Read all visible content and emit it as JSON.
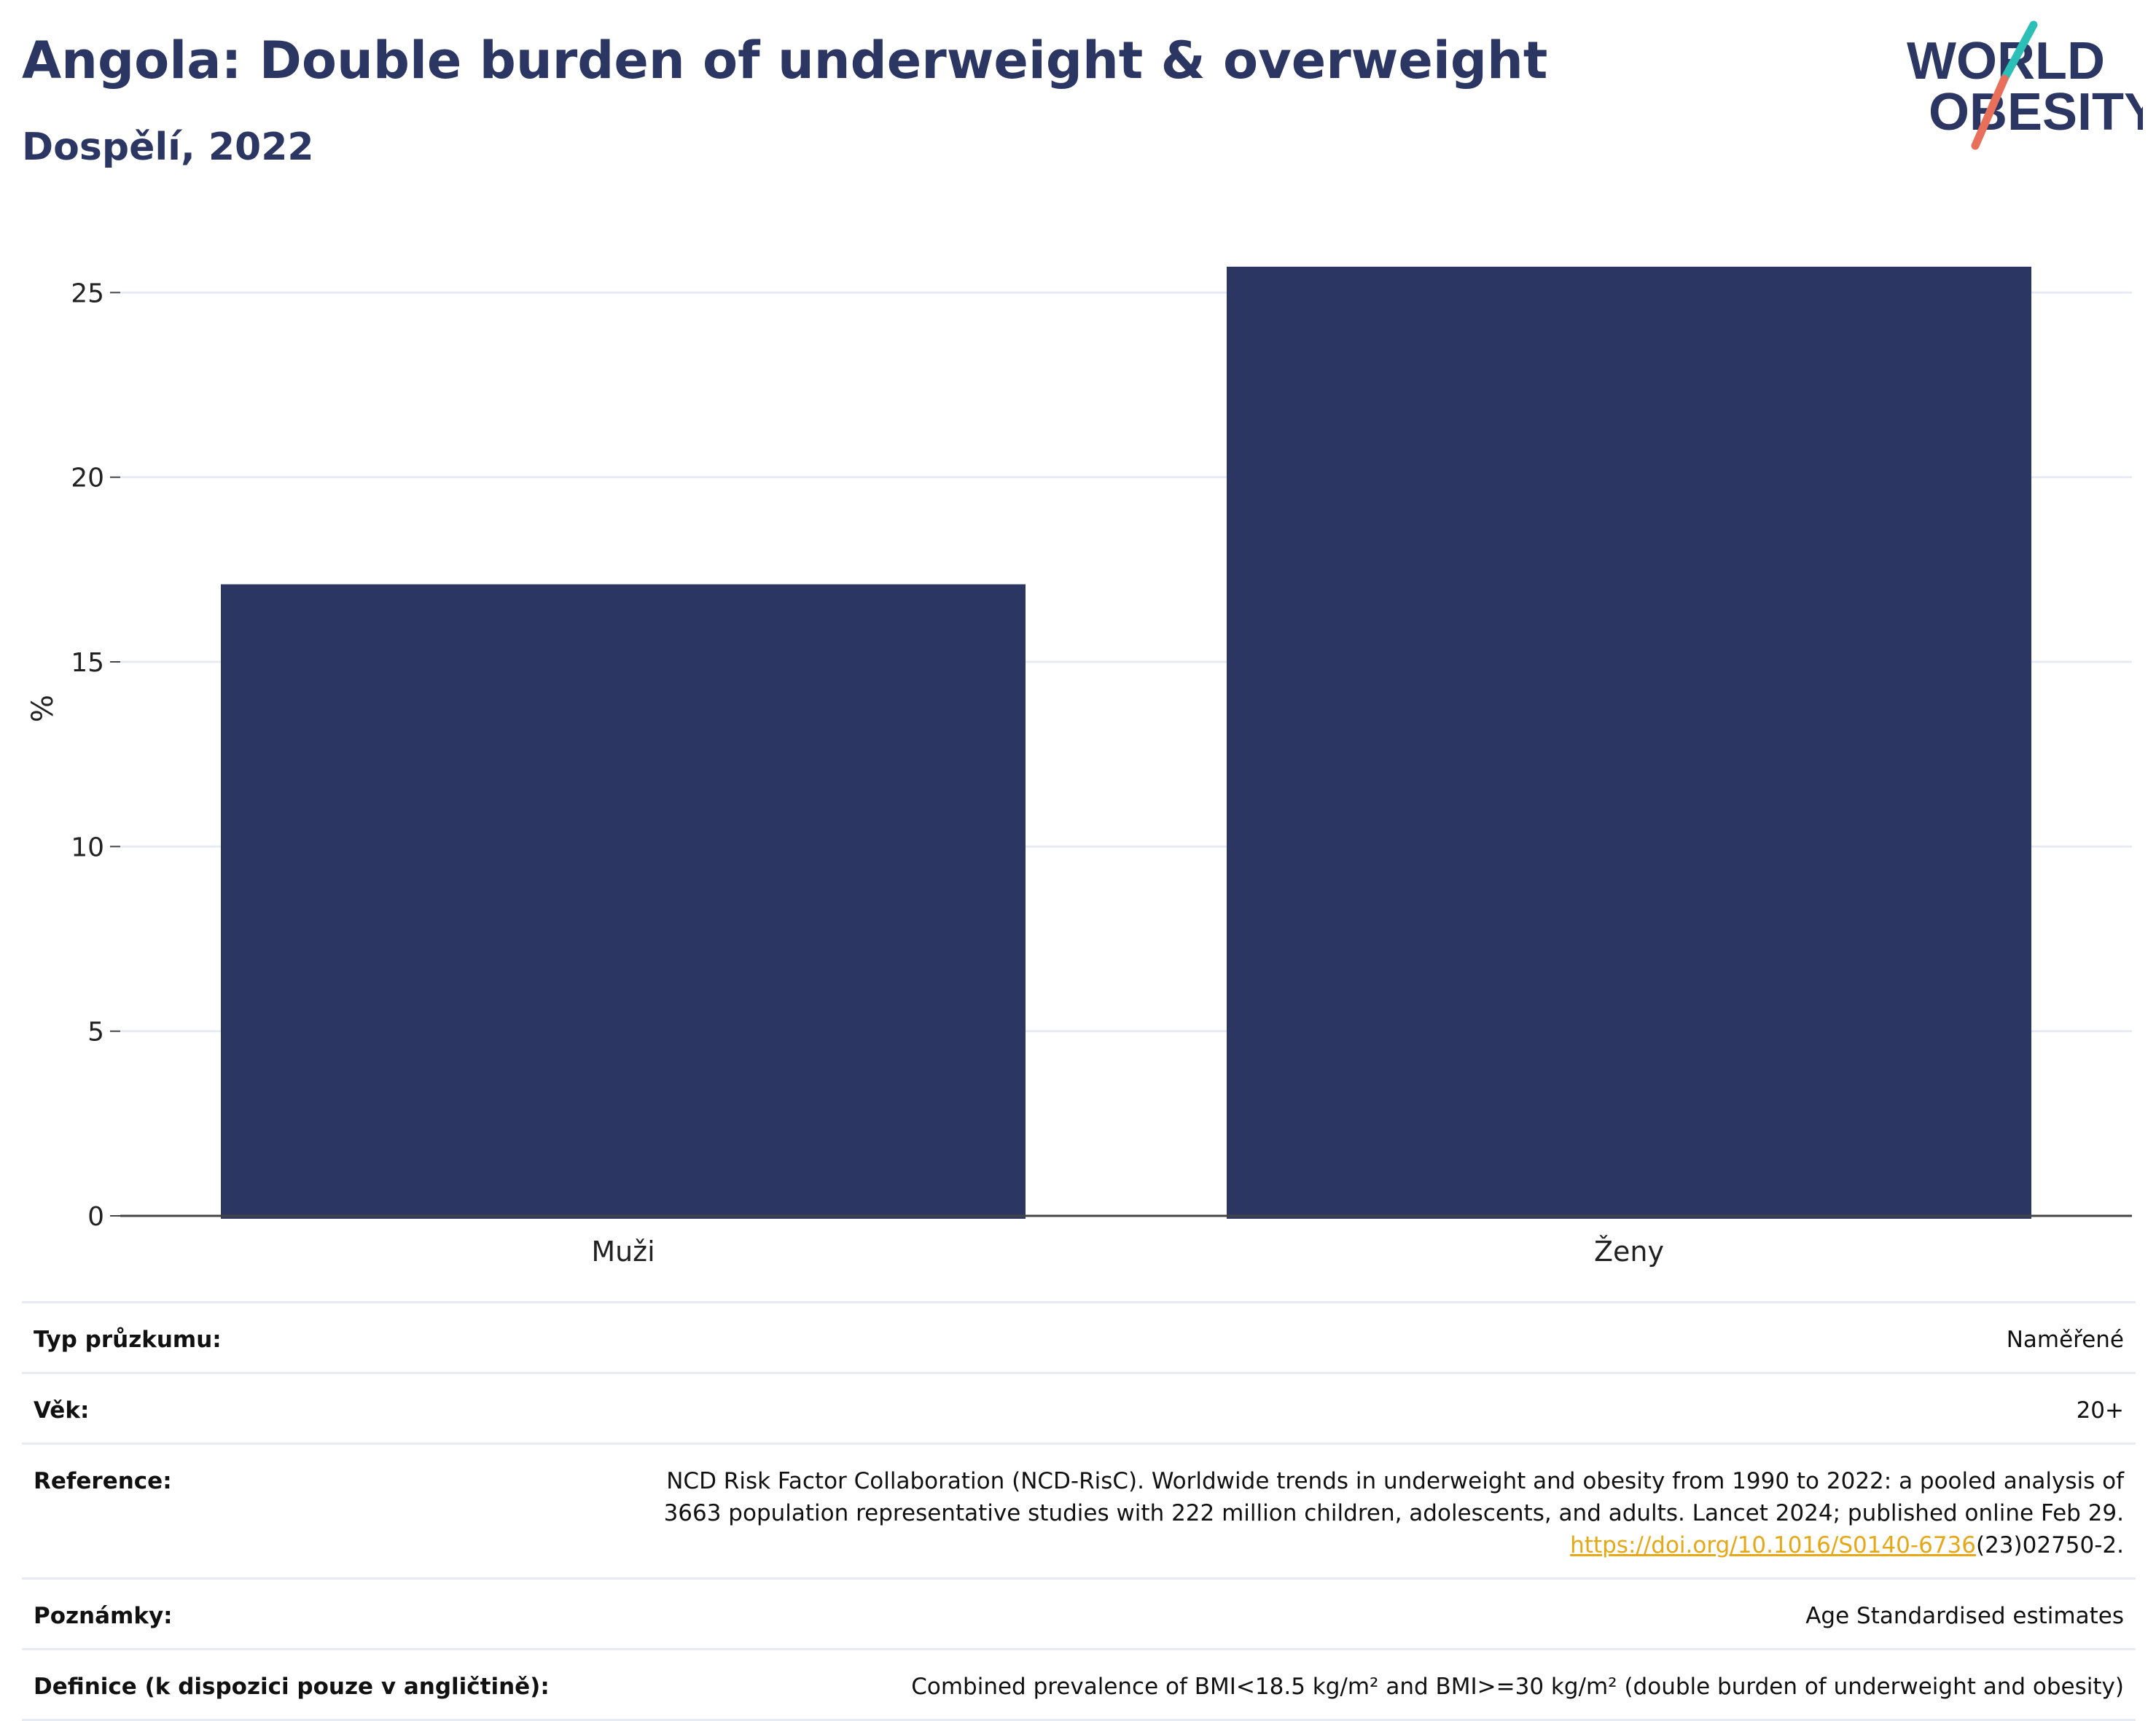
{
  "header": {
    "title": "Angola: Double burden of underweight & overweight",
    "subtitle": "Dospělí, 2022"
  },
  "logo": {
    "line1": "WORLD",
    "line2": "OBESITY",
    "text_color": "#2b3663",
    "slash_color_top": "#2bbfb8",
    "slash_color_bottom": "#e8705a"
  },
  "chart_data": {
    "type": "bar",
    "categories": [
      "Muži",
      "Ženy"
    ],
    "values": [
      17.1,
      25.7
    ],
    "ylabel": "%",
    "xlabel": "",
    "ylim": [
      0,
      27
    ],
    "yticks": [
      0,
      5,
      10,
      15,
      20,
      25
    ],
    "grid": true,
    "bar_color": "#2b3663"
  },
  "info": {
    "rows": [
      {
        "label": "Typ průzkumu:",
        "value": "Naměřené"
      },
      {
        "label": "Věk:",
        "value": "20+"
      },
      {
        "label": "Reference:",
        "value_line1": "NCD Risk Factor Collaboration (NCD-RisC). Worldwide trends in underweight and obesity from 1990 to 2022: a pooled analysis of",
        "value_line2": "3663 population representative studies with 222 million children, adolescents, and adults. Lancet 2024; published online Feb 29.",
        "link": "https://doi.org/10.1016/S0140-6736",
        "link_suffix": "(23)02750-2."
      },
      {
        "label": "Poznámky:",
        "value": "Age Standardised estimates"
      },
      {
        "label": "Definice (k dispozici pouze v angličtině):",
        "value": "Combined prevalence of BMI<18.5 kg/m² and BMI>=30 kg/m² (double burden of underweight and obesity)"
      }
    ]
  }
}
